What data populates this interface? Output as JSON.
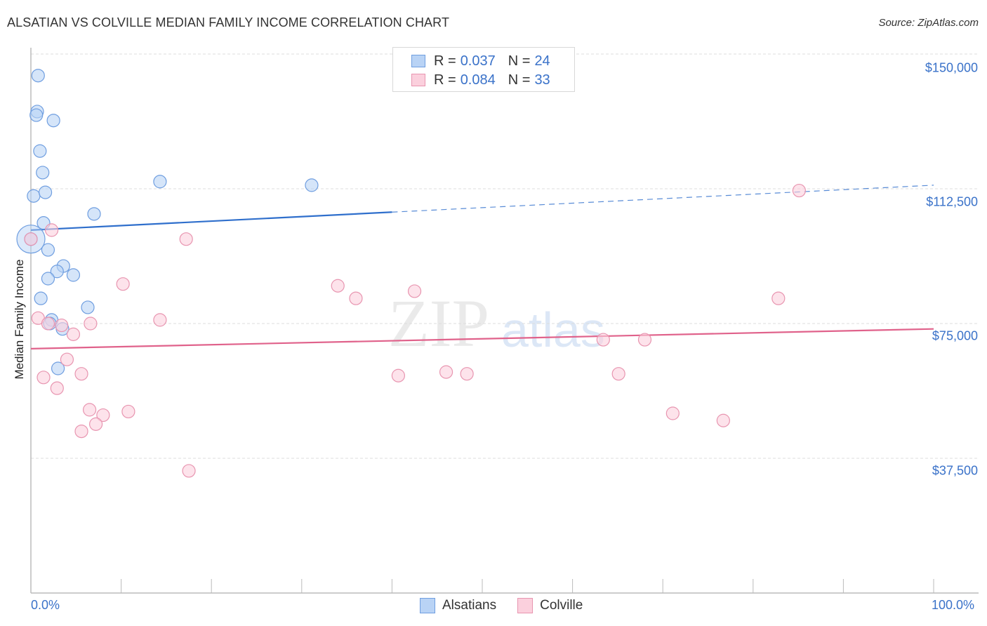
{
  "header": {
    "title": "ALSATIAN VS COLVILLE MEDIAN FAMILY INCOME CORRELATION CHART",
    "source": "Source: ZipAtlas.com"
  },
  "legend": {
    "rows": [
      {
        "series": "Alsatians",
        "r_label": "R =",
        "r_value": "0.037",
        "n_label": "N =",
        "n_value": "24"
      },
      {
        "series": "Colville",
        "r_label": "R =",
        "r_value": "0.084",
        "n_label": "N =",
        "n_value": "33"
      }
    ]
  },
  "bottom_legend": {
    "items": [
      {
        "label": "Alsatians"
      },
      {
        "label": "Colville"
      }
    ]
  },
  "axes": {
    "y_label": "Median Family Income",
    "y_ticks": [
      "$150,000",
      "$112,500",
      "$75,000",
      "$37,500"
    ],
    "x_ticks": [
      "0.0%",
      "100.0%"
    ]
  },
  "watermark": {
    "zip": "ZIP",
    "atlas": "atlas"
  },
  "colors": {
    "alsatians_fill": "#b9d3f5",
    "alsatians_stroke": "#6f9ee0",
    "alsatians_line": "#2f6fcc",
    "colville_fill": "#fbd0dd",
    "colville_stroke": "#e895b0",
    "colville_line": "#e0628b",
    "tick_label": "#3a72c9",
    "grid": "#dddddd"
  },
  "chart_data": {
    "type": "scatter",
    "title": "ALSATIAN VS COLVILLE MEDIAN FAMILY INCOME CORRELATION CHART",
    "xlabel": "",
    "ylabel": "Median Family Income",
    "xlim": [
      0,
      100
    ],
    "ylim": [
      0,
      157000
    ],
    "x_unit": "%",
    "y_ticks": [
      37500,
      75000,
      112500,
      150000
    ],
    "grid": true,
    "legend_position": "top-center",
    "series": [
      {
        "name": "Alsatians",
        "R": 0.037,
        "N": 24,
        "points": [
          {
            "x": 0.8,
            "y": 144000
          },
          {
            "x": 0.7,
            "y": 134000
          },
          {
            "x": 0.6,
            "y": 133000
          },
          {
            "x": 2.5,
            "y": 131500
          },
          {
            "x": 1.0,
            "y": 123000
          },
          {
            "x": 1.3,
            "y": 117000
          },
          {
            "x": 0.3,
            "y": 110500
          },
          {
            "x": 1.6,
            "y": 111500
          },
          {
            "x": 14.3,
            "y": 114500
          },
          {
            "x": 31.1,
            "y": 113500
          },
          {
            "x": 7.0,
            "y": 105500
          },
          {
            "x": 1.4,
            "y": 103000
          },
          {
            "x": 0.0,
            "y": 98500
          },
          {
            "x": 1.9,
            "y": 95500
          },
          {
            "x": 3.6,
            "y": 91000
          },
          {
            "x": 2.9,
            "y": 89500
          },
          {
            "x": 1.9,
            "y": 87500
          },
          {
            "x": 4.7,
            "y": 88500
          },
          {
            "x": 1.1,
            "y": 82000
          },
          {
            "x": 6.3,
            "y": 79500
          },
          {
            "x": 2.3,
            "y": 76000
          },
          {
            "x": 2.1,
            "y": 75000
          },
          {
            "x": 3.5,
            "y": 73500
          },
          {
            "x": 3.0,
            "y": 62500
          }
        ],
        "trend": {
          "x0": 0,
          "y0": 101000,
          "x1": 40,
          "y1": 106000,
          "dashed_to": {
            "x": 100,
            "y": 113500
          }
        }
      },
      {
        "name": "Colville",
        "R": 0.084,
        "N": 33,
        "points": [
          {
            "x": 0.0,
            "y": 98500
          },
          {
            "x": 2.3,
            "y": 101000
          },
          {
            "x": 17.2,
            "y": 98500
          },
          {
            "x": 10.2,
            "y": 86000
          },
          {
            "x": 34.0,
            "y": 85500
          },
          {
            "x": 36.0,
            "y": 82000
          },
          {
            "x": 42.5,
            "y": 84000
          },
          {
            "x": 82.8,
            "y": 82000
          },
          {
            "x": 0.8,
            "y": 76500
          },
          {
            "x": 1.9,
            "y": 75000
          },
          {
            "x": 3.4,
            "y": 74500
          },
          {
            "x": 14.3,
            "y": 76000
          },
          {
            "x": 6.6,
            "y": 75000
          },
          {
            "x": 4.7,
            "y": 72000
          },
          {
            "x": 63.4,
            "y": 70500
          },
          {
            "x": 68.0,
            "y": 70500
          },
          {
            "x": 4.0,
            "y": 65000
          },
          {
            "x": 1.4,
            "y": 60000
          },
          {
            "x": 5.6,
            "y": 61000
          },
          {
            "x": 2.9,
            "y": 57000
          },
          {
            "x": 40.7,
            "y": 60500
          },
          {
            "x": 46.0,
            "y": 61500
          },
          {
            "x": 48.3,
            "y": 61000
          },
          {
            "x": 65.1,
            "y": 61000
          },
          {
            "x": 6.5,
            "y": 51000
          },
          {
            "x": 10.8,
            "y": 50500
          },
          {
            "x": 8.0,
            "y": 49500
          },
          {
            "x": 7.2,
            "y": 47000
          },
          {
            "x": 5.6,
            "y": 45000
          },
          {
            "x": 71.1,
            "y": 50000
          },
          {
            "x": 76.7,
            "y": 48000
          },
          {
            "x": 17.5,
            "y": 34000
          },
          {
            "x": 85.1,
            "y": 112000
          }
        ],
        "trend": {
          "x0": 0,
          "y0": 68000,
          "x1": 100,
          "y1": 73500
        }
      }
    ]
  }
}
